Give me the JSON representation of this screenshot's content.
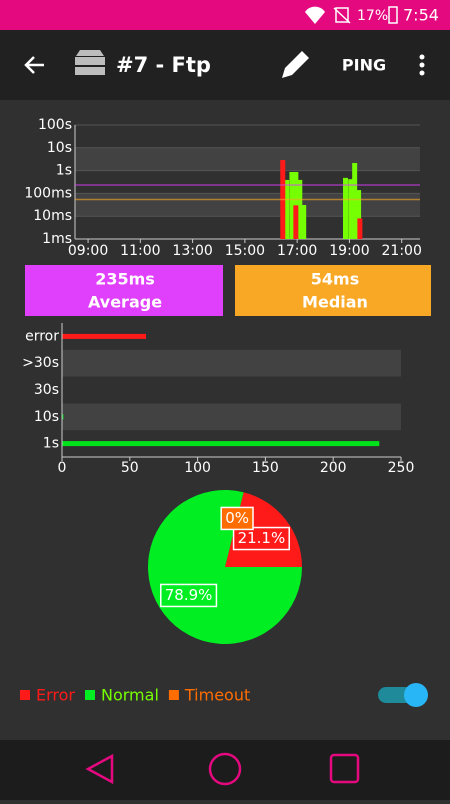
{
  "status_bar": {
    "battery": "17%",
    "time": "7:54"
  },
  "toolbar": {
    "title": "#7 - Ftp",
    "action": "PING"
  },
  "chart_data": [
    {
      "type": "timeline",
      "log_scale": true,
      "grid": true,
      "xlim": [
        8.5,
        21.7
      ],
      "xticks": [
        {
          "value": 9,
          "label": "09:00"
        },
        {
          "value": 11,
          "label": "11:00"
        },
        {
          "value": 13,
          "label": "13:00"
        },
        {
          "value": 15,
          "label": "15:00"
        },
        {
          "value": 17,
          "label": "17:00"
        },
        {
          "value": 19,
          "label": "19:00"
        },
        {
          "value": 21,
          "label": "21:00"
        }
      ],
      "ylim": [
        1,
        100000
      ],
      "yticks": [
        {
          "value": 1,
          "label": "1ms"
        },
        {
          "value": 10,
          "label": "10ms"
        },
        {
          "value": 100,
          "label": "100ms"
        },
        {
          "value": 1000,
          "label": "1s"
        },
        {
          "value": 10000,
          "label": "10s"
        },
        {
          "value": 100000,
          "label": "100s"
        }
      ],
      "series": [
        {
          "color": "#76ff03",
          "x": [
            16.6,
            16.8,
            16.95,
            17.1,
            17.25,
            18.85,
            19.05,
            19.2,
            19.35
          ],
          "values": [
            390,
            870,
            870,
            390,
            31,
            480,
            420,
            2150,
            140
          ]
        },
        {
          "color": "#ff1a1a",
          "x": [
            16.45,
            16.95,
            19.4
          ],
          "values": [
            2900,
            30,
            8
          ]
        }
      ],
      "lines": [
        {
          "name": "Average",
          "value": 235,
          "label": "235ms",
          "color": "#e040fb"
        },
        {
          "name": "Median",
          "value": 54,
          "label": "54ms",
          "color": "#f9a825"
        }
      ]
    },
    {
      "type": "hbar",
      "grid": true,
      "categories": [
        "error",
        ">30s",
        "30s",
        "10s",
        "1s"
      ],
      "values": [
        62,
        0,
        0,
        1,
        234
      ],
      "colors": [
        "#ff1a1a",
        "#00e31b",
        "#00e31b",
        "#00e31b",
        "#00e31b"
      ],
      "xlim": [
        0,
        250
      ],
      "xticks": [
        0,
        50,
        100,
        150,
        200,
        250
      ]
    },
    {
      "type": "pie",
      "categories": [
        "Error",
        "Normal",
        "Timeout"
      ],
      "values": [
        21.1,
        78.9,
        0
      ],
      "value_labels": [
        "21.1%",
        "78.9%",
        "0%"
      ],
      "colors": [
        "#ff1a1a",
        "#00ee22",
        "#ff6d00"
      ],
      "legend_colors": [
        "#ff1a1a",
        "#76ff03",
        "#ff6d00"
      ]
    }
  ],
  "toggle": {
    "on": true
  }
}
